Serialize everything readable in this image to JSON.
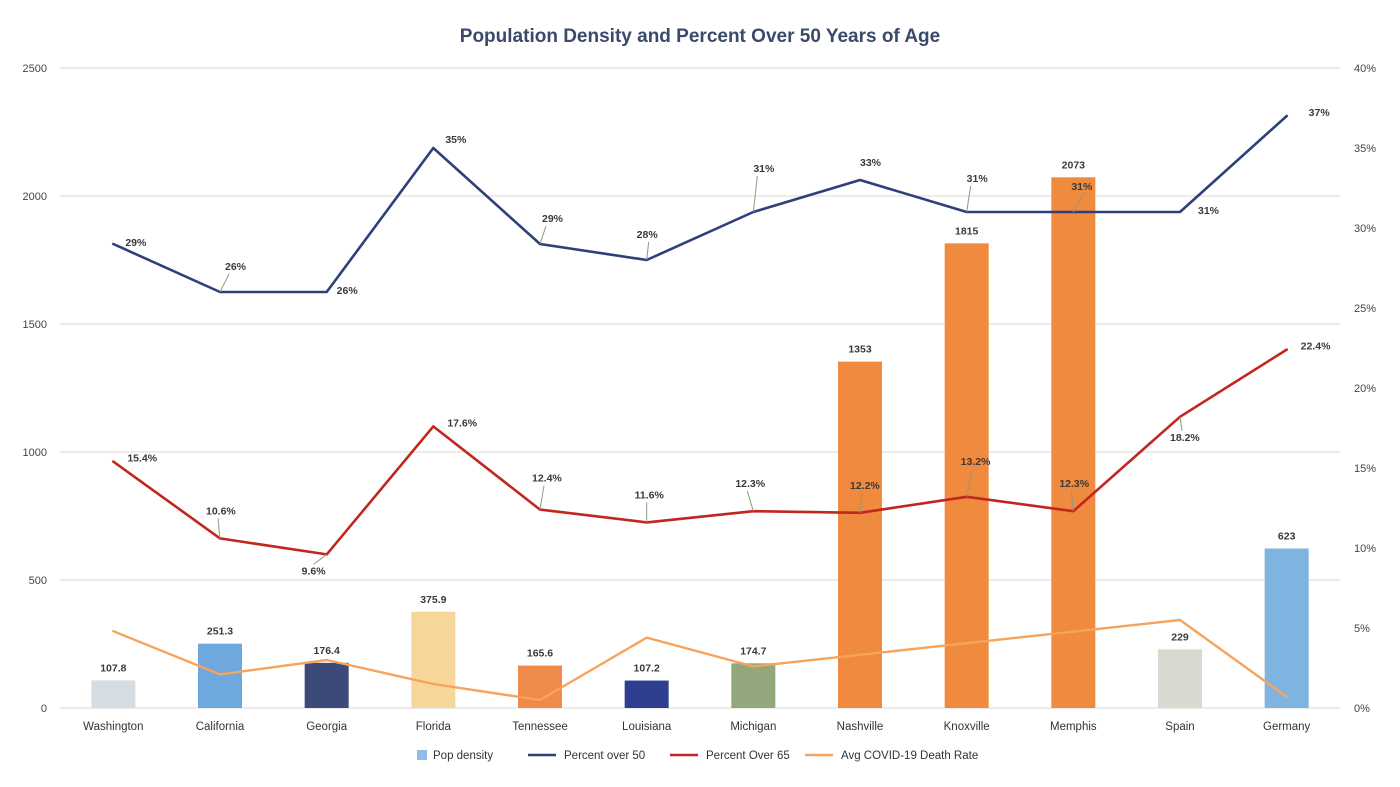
{
  "chart_data": {
    "type": "bar",
    "title": "Population Density and Percent Over 50 Years of Age",
    "categories": [
      "Washington",
      "California",
      "Georgia",
      "Florida",
      "Tennessee",
      "Louisiana",
      "Michigan",
      "Nashville",
      "Knoxville",
      "Memphis",
      "Spain",
      "Germany"
    ],
    "left_axis": {
      "min": 0,
      "max": 2500,
      "ticks": [
        "0",
        "500",
        "1000",
        "1500",
        "2000",
        "2500"
      ]
    },
    "right_axis": {
      "min": 0,
      "max": 40,
      "ticks": [
        "0%",
        "5%",
        "10%",
        "15%",
        "20%",
        "25%",
        "30%",
        "35%",
        "40%"
      ]
    },
    "grid": true,
    "legend_position": "bottom",
    "series": [
      {
        "name": "Pop density",
        "kind": "bar",
        "axis": "left",
        "values": [
          107.8,
          251.3,
          176.4,
          375.9,
          165.6,
          107.2,
          174.7,
          1353,
          1815,
          2073,
          229,
          623
        ],
        "labels": [
          "107.8",
          "251.3",
          "176.4",
          "375.9",
          "165.6",
          "107.2",
          "174.7",
          "1353",
          "1815",
          "2073",
          "229",
          "623"
        ],
        "colors": [
          "#d5dde3",
          "#6fa8dc",
          "#3c4a7a",
          "#f7d69a",
          "#f08a4b",
          "#2f3f8f",
          "#93a77d",
          "#f08a3e",
          "#f08a3e",
          "#f08a3e",
          "#d9d9cf",
          "#7fb3e0"
        ],
        "legend_color": "#8fbde8"
      },
      {
        "name": "Percent over 50",
        "kind": "line",
        "axis": "right",
        "color": "#2f3f7a",
        "values": [
          29,
          26,
          26,
          35,
          29,
          28,
          31,
          33,
          31,
          31,
          31,
          37
        ],
        "labels": [
          "29%",
          "26%",
          "26%",
          "35%",
          "29%",
          "28%",
          "31%",
          "33%",
          "31%",
          "31%",
          "31%",
          "37%"
        ]
      },
      {
        "name": "Percent Over 65",
        "kind": "line",
        "axis": "right",
        "color": "#c0271e",
        "values": [
          15.4,
          10.6,
          9.6,
          17.6,
          12.4,
          11.6,
          12.3,
          12.2,
          13.2,
          12.3,
          18.2,
          22.4
        ],
        "labels": [
          "15.4%",
          "10.6%",
          "9.6%",
          "17.6%",
          "12.4%",
          "11.6%",
          "12.3%",
          "12.2%",
          "13.2%",
          "12.3%",
          "18.2%",
          "22.4%"
        ]
      },
      {
        "name": "Avg COVID-19 Death Rate",
        "kind": "line",
        "axis": "right",
        "color": "#f7a35c",
        "points": [
          [
            0,
            4.8
          ],
          [
            1,
            2.1
          ],
          [
            2,
            3.0
          ],
          [
            3,
            1.5
          ],
          [
            4,
            0.5
          ],
          [
            5,
            4.4
          ],
          [
            6,
            2.6
          ],
          [
            10,
            5.5
          ],
          [
            11,
            0.7
          ]
        ]
      }
    ]
  }
}
